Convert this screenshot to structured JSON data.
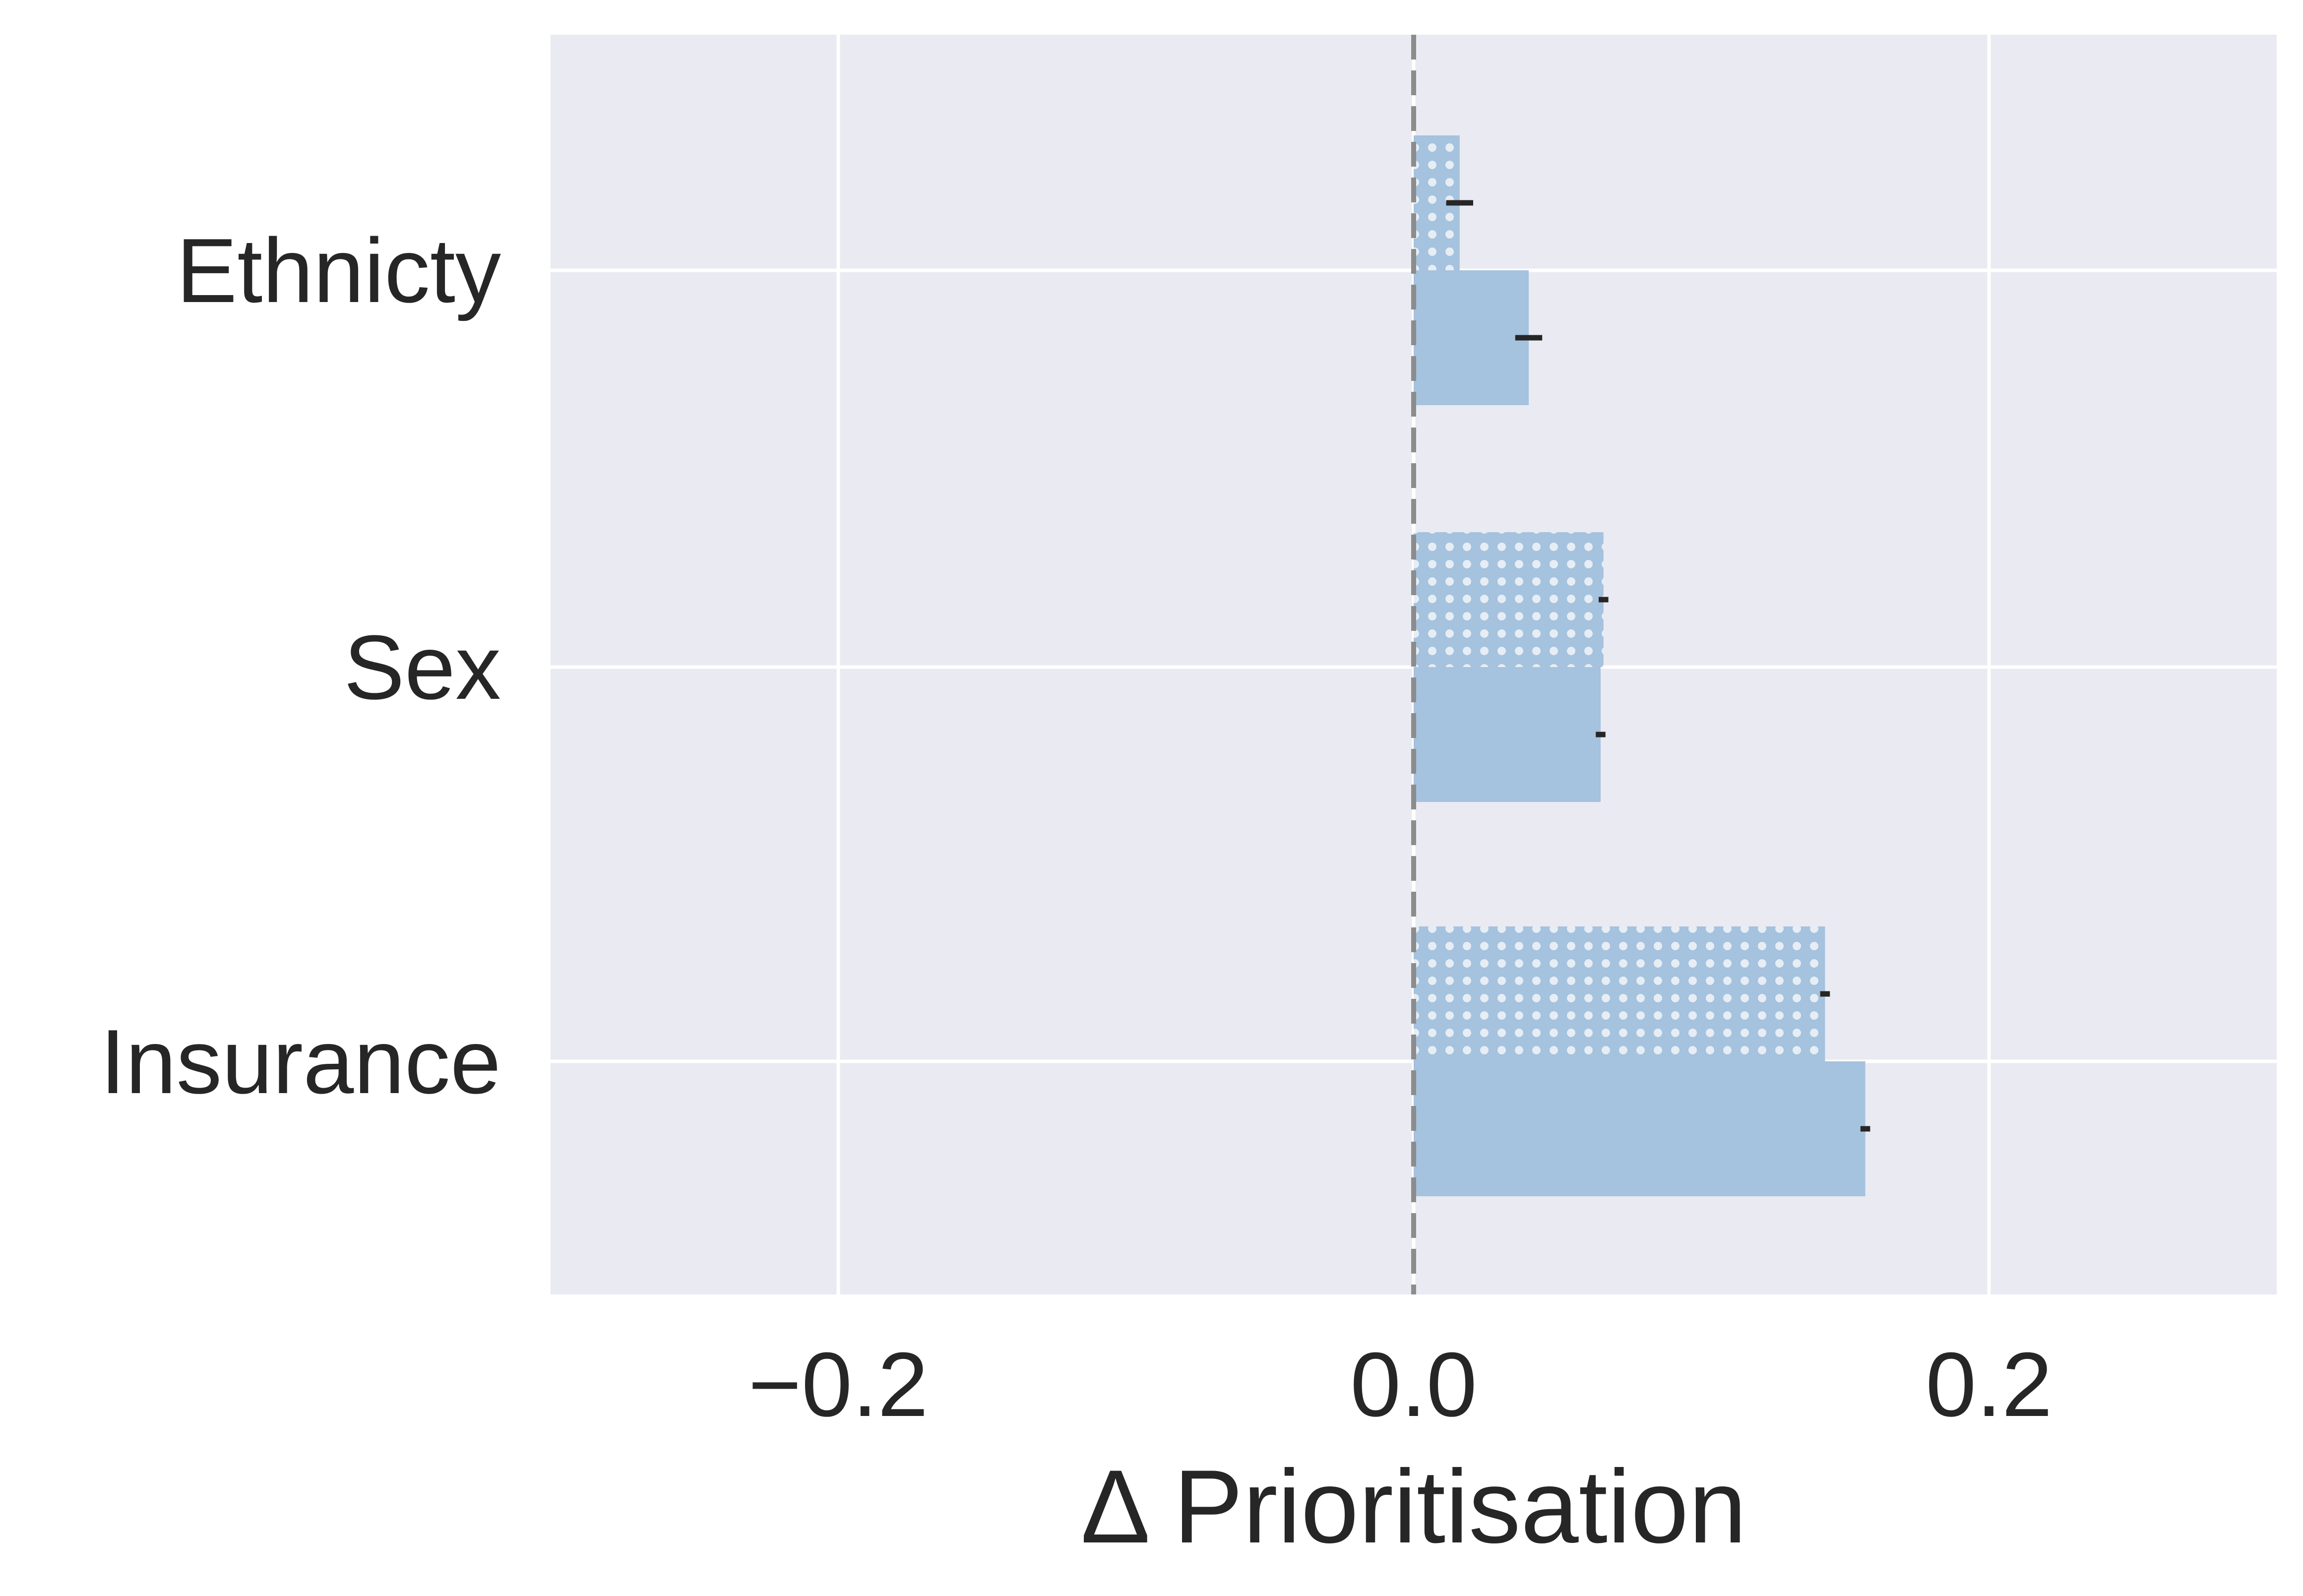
{
  "chart_data": {
    "type": "bar",
    "orientation": "horizontal",
    "title": "",
    "xlabel": "Δ Prioritisation",
    "ylabel": "",
    "xlim": [
      -0.3,
      0.3
    ],
    "xticks": [
      -0.2,
      0.0,
      0.2
    ],
    "xtick_labels": [
      "−0.2",
      "0.0",
      "0.2"
    ],
    "categories": [
      "Ethnicty",
      "Sex",
      "Insurance"
    ],
    "grid": true,
    "reference_line": {
      "x": 0.0,
      "style": "dashed",
      "color": "#8c8c8c"
    },
    "background_color": "#eaeaf2",
    "bar_color": "#a5c2de",
    "series": [
      {
        "pattern": "dots",
        "values": [
          0.016,
          0.066,
          0.143
        ],
        "errors": [
          0.004,
          0.001,
          0.001
        ]
      },
      {
        "pattern": "solid",
        "values": [
          0.04,
          0.065,
          0.157
        ],
        "errors": [
          0.004,
          0.001,
          0.001
        ]
      }
    ]
  }
}
